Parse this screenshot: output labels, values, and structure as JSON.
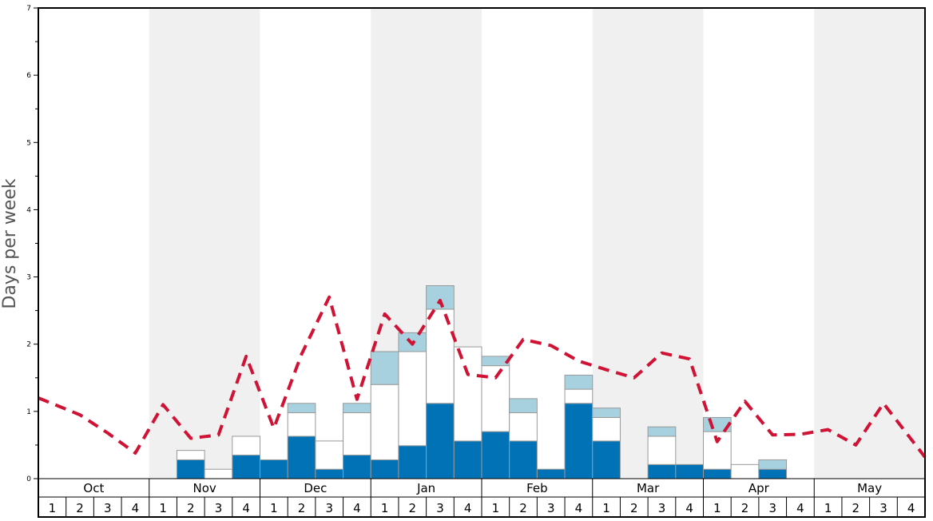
{
  "chart_data": {
    "type": "bar",
    "ylabel": "Days per week",
    "ylim": [
      0,
      7
    ],
    "y_ticks": [
      "0",
      "1",
      "2",
      "3",
      "4",
      "5",
      "6",
      "7"
    ],
    "months": [
      "Oct",
      "Nov",
      "Dec",
      "Jan",
      "Feb",
      "Mar",
      "Apr",
      "May"
    ],
    "week_labels": [
      "1",
      "2",
      "3",
      "4"
    ],
    "shaded_months": [
      "Nov",
      "Jan",
      "Mar",
      "May"
    ],
    "series": [
      {
        "name": "",
        "color": "#0172b5",
        "values": [
          0,
          0,
          0,
          0,
          0,
          0.28,
          0,
          0.35,
          0.28,
          0.63,
          0.14,
          0.35,
          0.28,
          0.49,
          1.12,
          0.56,
          0.7,
          0.56,
          0.14,
          1.12,
          0.56,
          0,
          0.21,
          0.21,
          0.14,
          0,
          0.14,
          0,
          0,
          0,
          0,
          0
        ]
      },
      {
        "name": "",
        "color": "#ffffff",
        "values": [
          0,
          0,
          0,
          0,
          0,
          0.14,
          0.14,
          0.28,
          0,
          0.35,
          0.42,
          0.63,
          1.12,
          1.4,
          1.4,
          1.4,
          0.98,
          0.42,
          0,
          0.21,
          0.35,
          0,
          0.42,
          0,
          0.56,
          0.21,
          0,
          0,
          0,
          0,
          0,
          0
        ]
      },
      {
        "name": "",
        "color": "#a8d1df",
        "values": [
          0,
          0,
          0,
          0,
          0,
          0,
          0,
          0,
          0,
          0.14,
          0,
          0.14,
          0.49,
          0.28,
          0.35,
          0,
          0.14,
          0.21,
          0,
          0.21,
          0.14,
          0,
          0.14,
          0,
          0.21,
          0,
          0.14,
          0,
          0,
          0,
          0,
          0
        ]
      },
      {
        "name": "",
        "color": "#d01235",
        "type": "line",
        "dashed": true,
        "values": [
          1.2,
          0.95,
          0.68,
          0.38,
          1.1,
          0.6,
          0.65,
          1.82,
          0.75,
          1.85,
          2.7,
          1.18,
          2.45,
          2.0,
          2.65,
          1.55,
          1.5,
          2.07,
          1.98,
          1.75,
          1.62,
          1.5,
          1.87,
          1.78,
          0.55,
          1.15,
          0.65,
          0.66,
          0.73,
          0.5,
          1.12,
          0.32
        ]
      }
    ],
    "colors": {
      "shade": "#f0f0f0",
      "grid_border": "#000000",
      "axis_text": "#000000",
      "ylabel_text": "#555555",
      "bar_outline": "#999999"
    }
  }
}
